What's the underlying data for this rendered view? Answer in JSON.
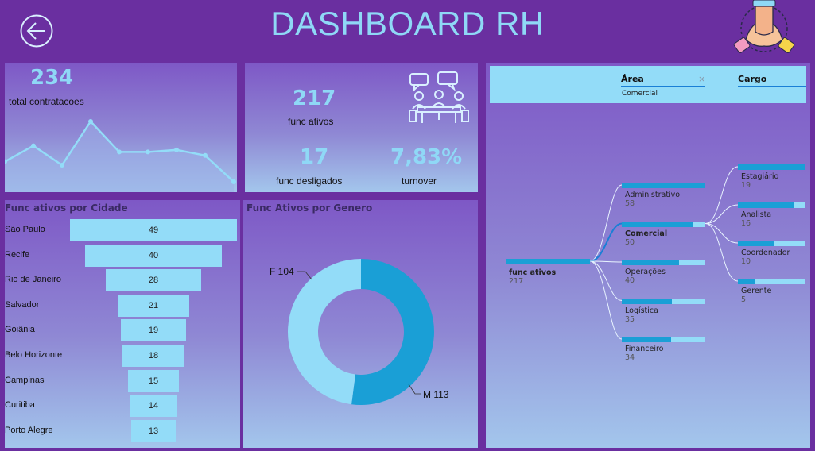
{
  "header": {
    "title": "DASHBOARD RH",
    "back_icon": "arrow-left-circle-icon",
    "logo_icon": "hands-together-logo"
  },
  "kpi_hires": {
    "value": "234",
    "label": "total contratacoes",
    "sparkline": [
      29,
      52,
      24,
      87,
      43,
      43,
      46,
      38,
      0
    ]
  },
  "kpi_active": {
    "active_value": "217",
    "active_label": "func ativos",
    "dismissed_value": "17",
    "dismissed_label": "func desligados",
    "turnover_value": "7,83%",
    "turnover_label": "turnover",
    "icon": "meeting-icon"
  },
  "city_chart": {
    "title": "Func ativos por Cidade",
    "items": [
      {
        "city": "São Paulo",
        "value": 49
      },
      {
        "city": "Recife",
        "value": 40
      },
      {
        "city": "Rio de Janeiro",
        "value": 28
      },
      {
        "city": "Salvador",
        "value": 21
      },
      {
        "city": "Goiânia",
        "value": 19
      },
      {
        "city": "Belo Horizonte",
        "value": 18
      },
      {
        "city": "Campinas",
        "value": 15
      },
      {
        "city": "Curitiba",
        "value": 14
      },
      {
        "city": "Porto Alegre",
        "value": 13
      }
    ]
  },
  "gender_chart": {
    "title": "Func Ativos por Genero",
    "f_label": "F 104",
    "m_label": "M 113",
    "f_value": 104,
    "m_value": 113,
    "colors": {
      "f": "#93dcf8",
      "m": "#1a9fd6"
    }
  },
  "decomposition": {
    "filter_area_label": "Área",
    "filter_area_value": "Comercial",
    "filter_cargo_label": "Cargo",
    "root_label": "func ativos",
    "root_value": "217",
    "areas": [
      {
        "name": "Administrativo",
        "value": "58",
        "fraction": 1.0
      },
      {
        "name": "Comercial",
        "value": "50",
        "fraction": 0.86
      },
      {
        "name": "Operações",
        "value": "40",
        "fraction": 0.69
      },
      {
        "name": "Logística",
        "value": "35",
        "fraction": 0.6
      },
      {
        "name": "Financeiro",
        "value": "34",
        "fraction": 0.59
      }
    ],
    "roles": [
      {
        "name": "Estagiário",
        "value": "19",
        "fraction": 1.0
      },
      {
        "name": "Analista",
        "value": "16",
        "fraction": 0.84
      },
      {
        "name": "Coordenador",
        "value": "10",
        "fraction": 0.53
      },
      {
        "name": "Gerente",
        "value": "5",
        "fraction": 0.26
      }
    ]
  }
}
